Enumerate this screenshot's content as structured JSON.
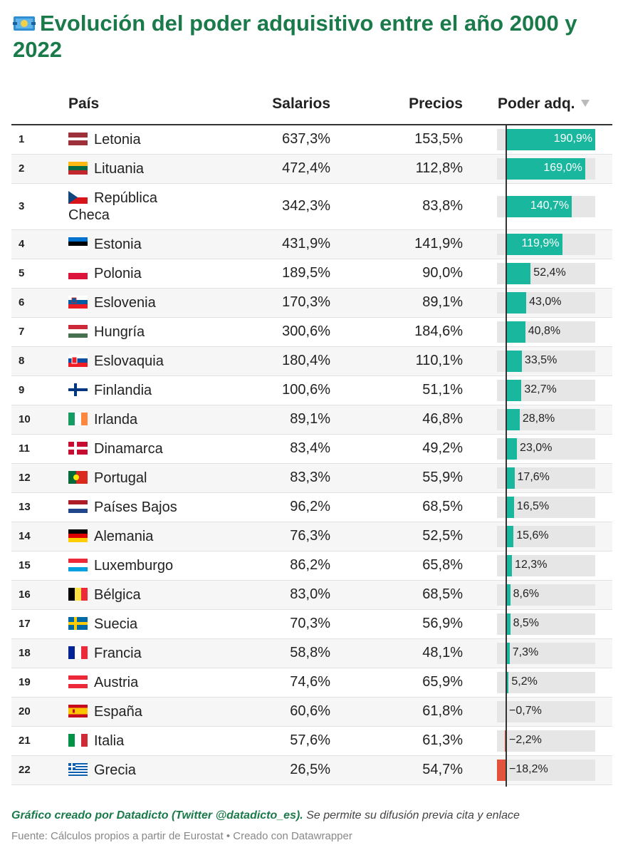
{
  "title": "Evolución del poder adquisitivo entre el año 2000 y 2022",
  "headers": {
    "pais": "País",
    "salarios": "Salarios",
    "precios": "Precios",
    "poder": "Poder adq."
  },
  "colors": {
    "title": "#1a7a4a",
    "positive": "#19b89e",
    "negative": "#e2533d",
    "track": "#e6e6e6"
  },
  "chart_data": {
    "type": "table",
    "columns": [
      "País",
      "Salarios",
      "Precios",
      "Poder adq."
    ],
    "bar_range": [
      -18.2,
      190.9
    ],
    "rows": [
      {
        "rank": "1",
        "country": "Letonia",
        "flag": "lv",
        "salarios": "637,3%",
        "precios": "153,5%",
        "poder": 190.9,
        "poder_label": "190,9%"
      },
      {
        "rank": "2",
        "country": "Lituania",
        "flag": "lt",
        "salarios": "472,4%",
        "precios": "112,8%",
        "poder": 169.0,
        "poder_label": "169,0%"
      },
      {
        "rank": "3",
        "country": "República Checa",
        "flag": "cz",
        "salarios": "342,3%",
        "precios": "83,8%",
        "poder": 140.7,
        "poder_label": "140,7%"
      },
      {
        "rank": "4",
        "country": "Estonia",
        "flag": "ee",
        "salarios": "431,9%",
        "precios": "141,9%",
        "poder": 119.9,
        "poder_label": "119,9%"
      },
      {
        "rank": "5",
        "country": "Polonia",
        "flag": "pl",
        "salarios": "189,5%",
        "precios": "90,0%",
        "poder": 52.4,
        "poder_label": "52,4%"
      },
      {
        "rank": "6",
        "country": "Eslovenia",
        "flag": "si",
        "salarios": "170,3%",
        "precios": "89,1%",
        "poder": 43.0,
        "poder_label": "43,0%"
      },
      {
        "rank": "7",
        "country": "Hungría",
        "flag": "hu",
        "salarios": "300,6%",
        "precios": "184,6%",
        "poder": 40.8,
        "poder_label": "40,8%"
      },
      {
        "rank": "8",
        "country": "Eslovaquia",
        "flag": "sk",
        "salarios": "180,4%",
        "precios": "110,1%",
        "poder": 33.5,
        "poder_label": "33,5%"
      },
      {
        "rank": "9",
        "country": "Finlandia",
        "flag": "fi",
        "salarios": "100,6%",
        "precios": "51,1%",
        "poder": 32.7,
        "poder_label": "32,7%"
      },
      {
        "rank": "10",
        "country": "Irlanda",
        "flag": "ie",
        "salarios": "89,1%",
        "precios": "46,8%",
        "poder": 28.8,
        "poder_label": "28,8%"
      },
      {
        "rank": "11",
        "country": "Dinamarca",
        "flag": "dk",
        "salarios": "83,4%",
        "precios": "49,2%",
        "poder": 23.0,
        "poder_label": "23,0%"
      },
      {
        "rank": "12",
        "country": "Portugal",
        "flag": "pt",
        "salarios": "83,3%",
        "precios": "55,9%",
        "poder": 17.6,
        "poder_label": "17,6%"
      },
      {
        "rank": "13",
        "country": "Países Bajos",
        "flag": "nl",
        "salarios": "96,2%",
        "precios": "68,5%",
        "poder": 16.5,
        "poder_label": "16,5%"
      },
      {
        "rank": "14",
        "country": "Alemania",
        "flag": "de",
        "salarios": "76,3%",
        "precios": "52,5%",
        "poder": 15.6,
        "poder_label": "15,6%"
      },
      {
        "rank": "15",
        "country": "Luxemburgo",
        "flag": "lu",
        "salarios": "86,2%",
        "precios": "65,8%",
        "poder": 12.3,
        "poder_label": "12,3%"
      },
      {
        "rank": "16",
        "country": "Bélgica",
        "flag": "be",
        "salarios": "83,0%",
        "precios": "68,5%",
        "poder": 8.6,
        "poder_label": "8,6%"
      },
      {
        "rank": "17",
        "country": "Suecia",
        "flag": "se",
        "salarios": "70,3%",
        "precios": "56,9%",
        "poder": 8.5,
        "poder_label": "8,5%"
      },
      {
        "rank": "18",
        "country": "Francia",
        "flag": "fr",
        "salarios": "58,8%",
        "precios": "48,1%",
        "poder": 7.3,
        "poder_label": "7,3%"
      },
      {
        "rank": "19",
        "country": "Austria",
        "flag": "at",
        "salarios": "74,6%",
        "precios": "65,9%",
        "poder": 5.2,
        "poder_label": "5,2%"
      },
      {
        "rank": "20",
        "country": "España",
        "flag": "es",
        "salarios": "60,6%",
        "precios": "61,8%",
        "poder": -0.7,
        "poder_label": "−0,7%"
      },
      {
        "rank": "21",
        "country": "Italia",
        "flag": "it",
        "salarios": "57,6%",
        "precios": "61,3%",
        "poder": -2.2,
        "poder_label": "−2,2%"
      },
      {
        "rank": "22",
        "country": "Grecia",
        "flag": "gr",
        "salarios": "26,5%",
        "precios": "54,7%",
        "poder": -18.2,
        "poder_label": "−18,2%"
      }
    ]
  },
  "footer": {
    "credit_bold": "Gráfico creado por Datadicto (Twitter @datadicto_es).",
    "credit_rest": " Se permite su difusión previa cita y enlace",
    "source": "Fuente: Cálculos propios a partir de Eurostat • Creado con Datawrapper"
  }
}
